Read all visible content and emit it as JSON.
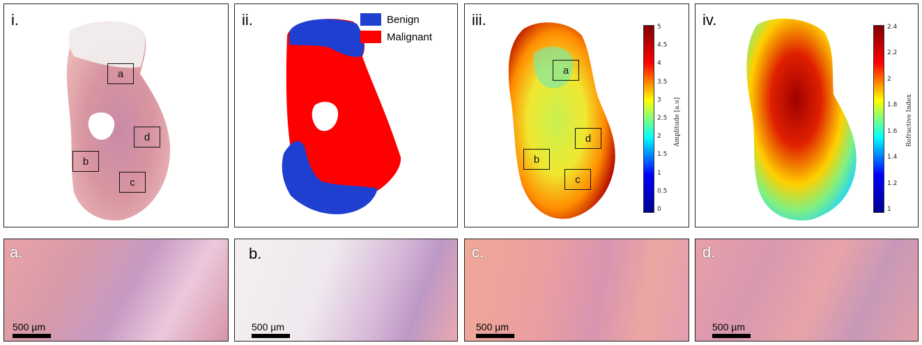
{
  "panels_top": [
    {
      "label": "i."
    },
    {
      "label": "ii."
    },
    {
      "label": "iii."
    },
    {
      "label": "iv."
    }
  ],
  "panels_bottom": [
    {
      "label": "a.",
      "scalebar": "500 µm"
    },
    {
      "label": "b.",
      "scalebar": "500 µm"
    },
    {
      "label": "c.",
      "scalebar": "500 µm"
    },
    {
      "label": "d.",
      "scalebar": "500 µm"
    }
  ],
  "rois": [
    "a",
    "b",
    "c",
    "d"
  ],
  "legend": {
    "benign": {
      "label": "Benign",
      "color": "#1f3fd0"
    },
    "malignant": {
      "label": "Malignant",
      "color": "#ff0000"
    }
  },
  "colorbar_iii": {
    "title": "Amplitude [a.u]",
    "ticks": [
      "0",
      "0.5",
      "1",
      "1.5",
      "2",
      "2.5",
      "3",
      "3.5",
      "4",
      "4.5",
      "5"
    ]
  },
  "colorbar_iv": {
    "title": "Refractive Index",
    "ticks": [
      "1",
      "1.2",
      "1.4",
      "1.6",
      "1.8",
      "2",
      "2.2",
      "2.4"
    ]
  },
  "colors": {
    "tissue_pink": "#e8a0a8",
    "tissue_purple": "#9a6aa8",
    "jet_low": "#00008f",
    "jet_high": "#800000"
  }
}
